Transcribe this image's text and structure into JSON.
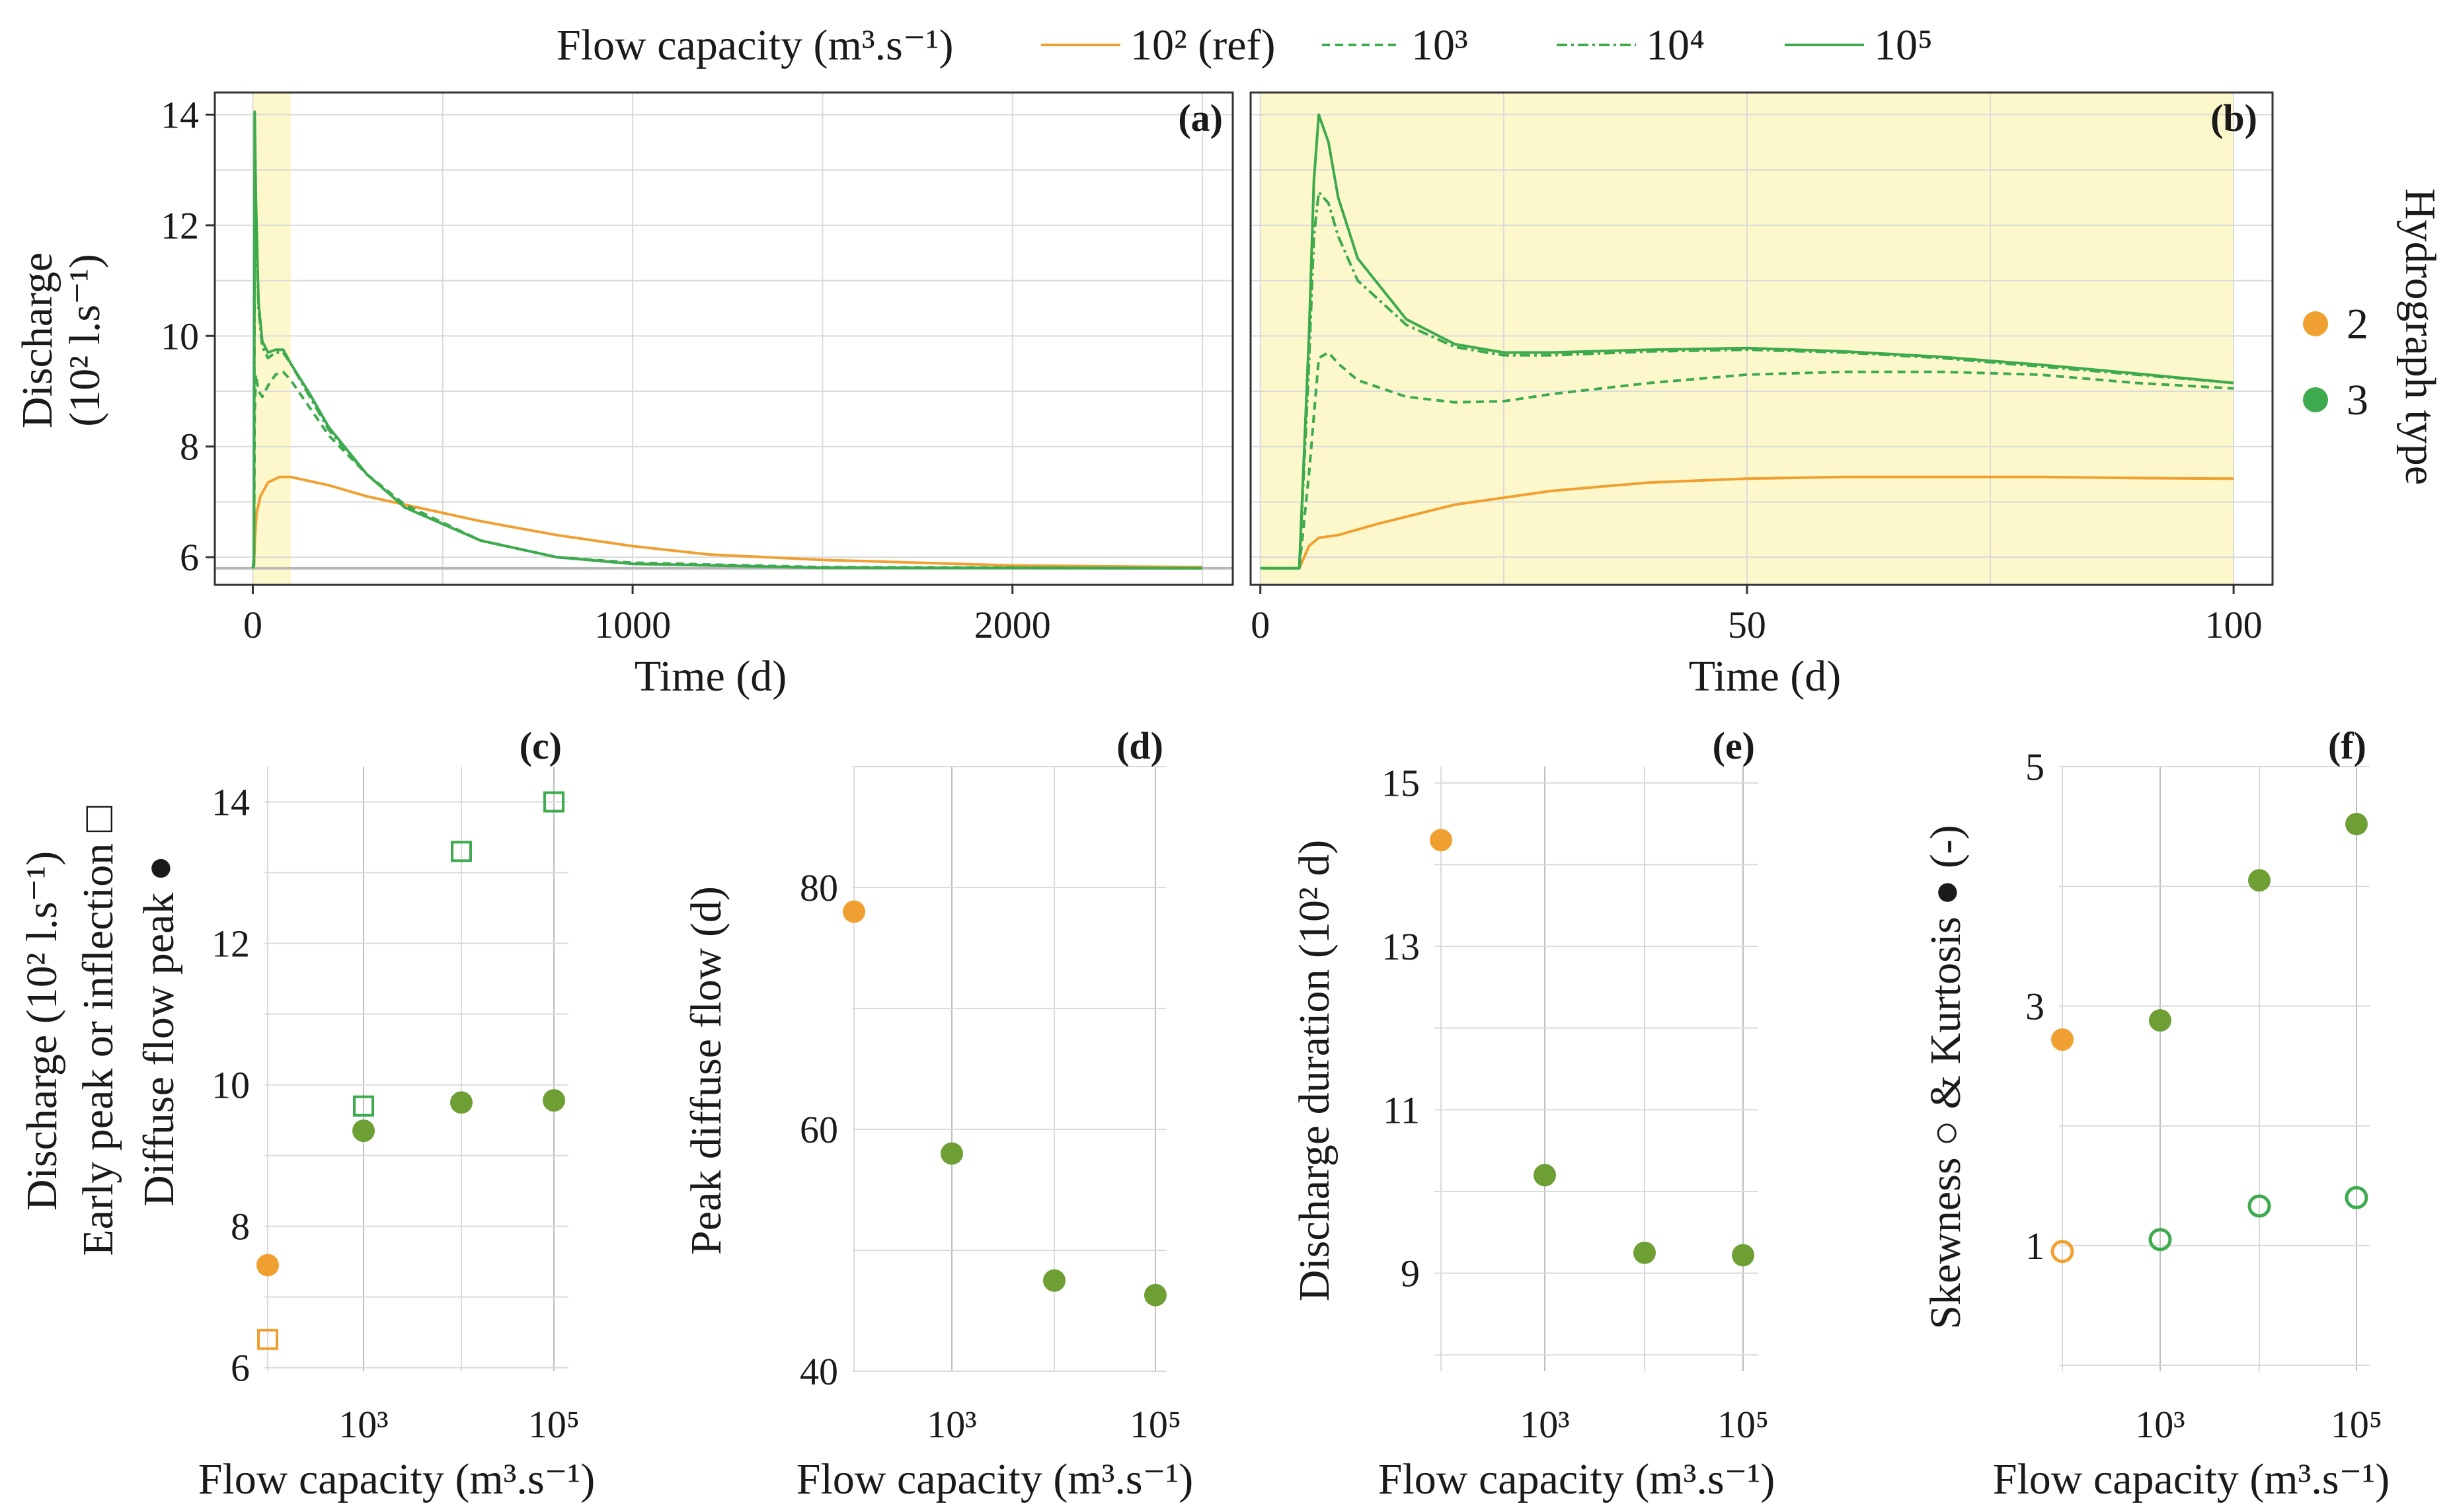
{
  "colors": {
    "orange": "#F0A030",
    "green": "#3DAA4E",
    "green_marker": "#6E9F35",
    "highlight": "#FDF8CB",
    "grid": "#DADADA",
    "refline": "#B8B8B8"
  },
  "legend": {
    "title": "Flow capacity (m³.s⁻¹)",
    "items": [
      {
        "label": "10² (ref)",
        "color": "#F0A030",
        "dash": "solid"
      },
      {
        "label": "10³",
        "color": "#3DAA4E",
        "dash": "dashed"
      },
      {
        "label": "10⁴",
        "color": "#3DAA4E",
        "dash": "dashdot"
      },
      {
        "label": "10⁵",
        "color": "#3DAA4E",
        "dash": "solid"
      }
    ]
  },
  "hydro_legend": {
    "title": "Hydrograph type",
    "items": [
      {
        "label": "2",
        "color": "#F0A030"
      },
      {
        "label": "3",
        "color": "#3DAA4E"
      }
    ]
  },
  "chart_data": [
    {
      "panel": "(a)",
      "type": "line",
      "xlabel": "Time (d)",
      "ylabel": [
        "Discharge",
        "(10² l.s⁻¹)"
      ],
      "xlim": [
        -100,
        2580
      ],
      "ylim": [
        5.5,
        14.4
      ],
      "xticks": [
        0,
        1000,
        2000
      ],
      "yticks": [
        6,
        8,
        10,
        12,
        14
      ],
      "highlight_x": [
        0,
        100
      ],
      "baseline": 5.8,
      "series": [
        {
          "name": "10² (ref)",
          "x": [
            0,
            3,
            6,
            10,
            20,
            40,
            70,
            100,
            200,
            300,
            400,
            600,
            800,
            1000,
            1200,
            1500,
            2000,
            2500
          ],
          "y": [
            5.8,
            5.85,
            6.4,
            6.8,
            7.1,
            7.35,
            7.45,
            7.45,
            7.3,
            7.1,
            6.95,
            6.65,
            6.4,
            6.2,
            6.05,
            5.95,
            5.85,
            5.82
          ]
        },
        {
          "name": "10³",
          "x": [
            0,
            3,
            5,
            8,
            15,
            25,
            40,
            60,
            80,
            100,
            150,
            200,
            300,
            400,
            600,
            800,
            1000,
            1500,
            2500
          ],
          "y": [
            5.8,
            5.85,
            8.6,
            9.3,
            9.0,
            8.9,
            9.1,
            9.3,
            9.35,
            9.2,
            8.7,
            8.2,
            7.5,
            6.95,
            6.3,
            6.0,
            5.9,
            5.82,
            5.8
          ]
        },
        {
          "name": "10⁴",
          "x": [
            0,
            3,
            5,
            8,
            15,
            25,
            40,
            60,
            80,
            100,
            150,
            200,
            300,
            400,
            600,
            800,
            1000,
            1500,
            2500
          ],
          "y": [
            5.8,
            5.9,
            12.5,
            12.0,
            10.5,
            9.8,
            9.6,
            9.7,
            9.7,
            9.5,
            8.9,
            8.3,
            7.5,
            6.9,
            6.3,
            6.0,
            5.88,
            5.81,
            5.8
          ]
        },
        {
          "name": "10⁵",
          "x": [
            0,
            3,
            5,
            8,
            15,
            25,
            40,
            60,
            80,
            100,
            150,
            200,
            300,
            400,
            600,
            800,
            1000,
            1500,
            2500
          ],
          "y": [
            5.8,
            6.0,
            14.05,
            12.5,
            10.6,
            9.9,
            9.7,
            9.75,
            9.75,
            9.5,
            8.95,
            8.35,
            7.5,
            6.9,
            6.3,
            6.0,
            5.88,
            5.81,
            5.8
          ]
        }
      ]
    },
    {
      "panel": "(b)",
      "type": "line",
      "xlabel": "Time (d)",
      "xlim": [
        -1,
        104
      ],
      "ylim": [
        5.5,
        14.4
      ],
      "xticks": [
        0,
        50,
        100
      ],
      "highlight_x": [
        0,
        100
      ],
      "series": [
        {
          "name": "10² (ref)",
          "x": [
            0,
            4,
            5,
            6,
            8,
            12,
            20,
            30,
            40,
            50,
            60,
            70,
            80,
            90,
            100
          ],
          "y": [
            5.8,
            5.8,
            6.2,
            6.35,
            6.4,
            6.6,
            6.95,
            7.2,
            7.35,
            7.42,
            7.45,
            7.45,
            7.45,
            7.43,
            7.42
          ]
        },
        {
          "name": "10³",
          "x": [
            0,
            4,
            5,
            6,
            7,
            8,
            10,
            15,
            20,
            25,
            30,
            40,
            50,
            60,
            70,
            80,
            90,
            100
          ],
          "y": [
            5.8,
            5.8,
            7.5,
            9.6,
            9.7,
            9.5,
            9.2,
            8.9,
            8.8,
            8.82,
            8.95,
            9.15,
            9.3,
            9.35,
            9.35,
            9.3,
            9.15,
            9.05
          ]
        },
        {
          "name": "10⁴",
          "x": [
            0,
            4,
            5,
            5.5,
            6,
            7,
            8,
            10,
            15,
            20,
            25,
            30,
            40,
            50,
            60,
            70,
            80,
            90,
            100
          ],
          "y": [
            5.8,
            5.8,
            9.5,
            11.8,
            12.6,
            12.4,
            11.8,
            11.0,
            10.2,
            9.8,
            9.65,
            9.65,
            9.72,
            9.75,
            9.7,
            9.6,
            9.45,
            9.3,
            9.15
          ]
        },
        {
          "name": "10⁵",
          "x": [
            0,
            4,
            5,
            5.5,
            6,
            7,
            8,
            10,
            15,
            20,
            25,
            30,
            40,
            50,
            60,
            70,
            80,
            90,
            100
          ],
          "y": [
            5.8,
            5.8,
            10.0,
            12.8,
            14.0,
            13.5,
            12.5,
            11.4,
            10.3,
            9.85,
            9.7,
            9.7,
            9.75,
            9.78,
            9.72,
            9.62,
            9.48,
            9.32,
            9.15
          ]
        }
      ]
    },
    {
      "panel": "(c)",
      "type": "scatter",
      "xlabel": "Flow capacity (m³.s⁻¹)",
      "ylabel": [
        "Early peak or inflection □",
        "Diffuse flow peak ●"
      ],
      "ylabel_outer": "Discharge (10² l.s⁻¹)",
      "xticks": [
        "10³",
        "10⁵"
      ],
      "ylim": [
        5.95,
        14.5
      ],
      "yticks": [
        6,
        8,
        10,
        12,
        14
      ],
      "x": [
        2,
        3,
        4,
        5
      ],
      "series": [
        {
          "name": "Diffuse flow peak",
          "marker": "filled-circle",
          "y": [
            7.45,
            9.35,
            9.75,
            9.78
          ]
        },
        {
          "name": "Early peak or inflection",
          "marker": "open-square",
          "y": [
            6.4,
            9.7,
            13.3,
            14.0
          ]
        }
      ]
    },
    {
      "panel": "(d)",
      "type": "scatter",
      "xlabel": "Flow capacity (m³.s⁻¹)",
      "ylabel": "Peak diffuse flow (d)",
      "xticks": [
        "10³",
        "10⁵"
      ],
      "ylim": [
        40,
        90
      ],
      "yticks": [
        40,
        60,
        80
      ],
      "x": [
        2,
        3,
        4,
        5
      ],
      "series": [
        {
          "name": "Peak diffuse flow",
          "marker": "filled-circle",
          "y": [
            78,
            58,
            47.5,
            46.3
          ]
        }
      ]
    },
    {
      "panel": "(e)",
      "type": "scatter",
      "xlabel": "Flow capacity (m³.s⁻¹)",
      "ylabel": "Discharge duration (10² d)",
      "xticks": [
        "10³",
        "10⁵"
      ],
      "ylim": [
        7.8,
        15.2
      ],
      "yticks": [
        9,
        11,
        13,
        15
      ],
      "x": [
        2,
        3,
        4,
        5
      ],
      "series": [
        {
          "name": "Discharge duration",
          "marker": "filled-circle",
          "y": [
            14.3,
            10.2,
            9.25,
            9.22
          ]
        }
      ]
    },
    {
      "panel": "(f)",
      "type": "scatter",
      "xlabel": "Flow capacity (m³.s⁻¹)",
      "ylabel": "Skewness ○ &  Kurtosis ● (-)",
      "xticks": [
        "10³",
        "10⁵"
      ],
      "ylim": [
        -0.05,
        5.0
      ],
      "yticks": [
        1,
        3,
        5
      ],
      "x": [
        2,
        3,
        4,
        5
      ],
      "series": [
        {
          "name": "Kurtosis",
          "marker": "filled-circle",
          "y": [
            2.72,
            2.88,
            4.05,
            4.52
          ]
        },
        {
          "name": "Skewness",
          "marker": "open-circle",
          "y": [
            0.95,
            1.05,
            1.33,
            1.4
          ]
        }
      ]
    }
  ]
}
